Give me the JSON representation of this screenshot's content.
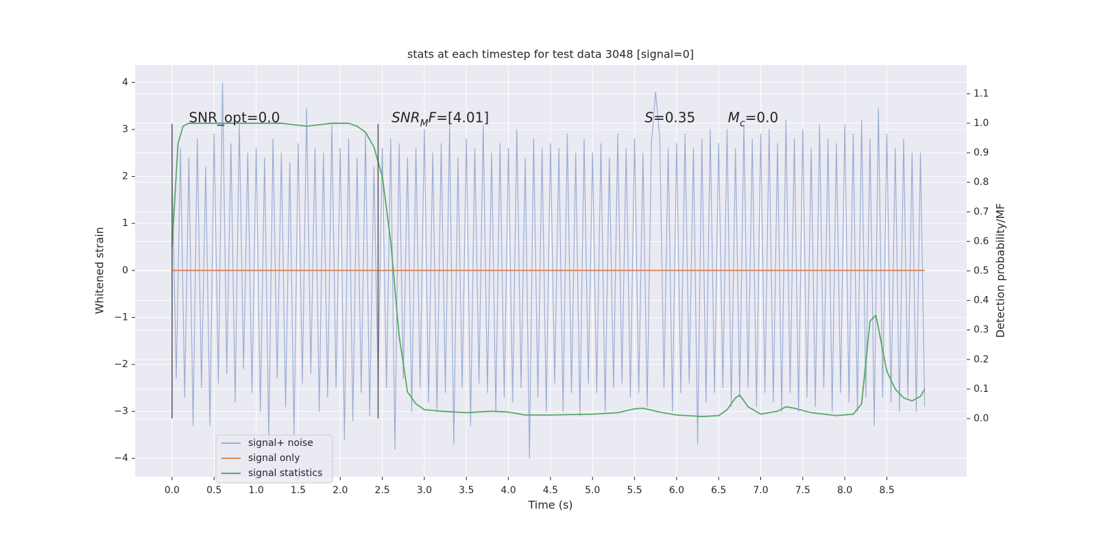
{
  "chart_data": {
    "type": "line",
    "title": "stats at each timestep for test data 3048 [signal=0]",
    "x_label": "Time (s)",
    "y_label": "Whitened strain",
    "y2_label": "Detection probability/MF",
    "xlim": [
      -0.44,
      9.45
    ],
    "ylim": [
      -4.39,
      4.37
    ],
    "y2lim": [
      -0.197,
      1.197
    ],
    "xticks": [
      {
        "value": 0,
        "label": "0.0"
      },
      0.5,
      {
        "value": 1,
        "label": "1.0"
      },
      1.5,
      {
        "value": 2,
        "label": "2.0"
      },
      2.5,
      {
        "value": 3,
        "label": "3.0"
      },
      3.5,
      {
        "value": 4,
        "label": "4.0"
      },
      4.5,
      {
        "value": 5,
        "label": "5.0"
      },
      5.5,
      {
        "value": 6,
        "label": "6.0"
      },
      6.5,
      {
        "value": 7,
        "label": "7.0"
      },
      7.5,
      {
        "value": 8,
        "label": "8.0"
      },
      8.5
    ],
    "yticks": [
      4,
      3,
      2,
      1,
      0,
      {
        "value": -1,
        "label": "−1"
      },
      {
        "value": -2,
        "label": "−2"
      },
      {
        "value": -3,
        "label": "−3"
      },
      {
        "value": -4,
        "label": "−4"
      }
    ],
    "y2ticks": [
      {
        "value": 0,
        "label": "0.0"
      },
      0.1,
      0.2,
      0.3,
      0.4,
      0.5,
      0.6,
      0.7,
      0.8,
      0.9,
      {
        "value": 1,
        "label": "1.0"
      },
      1.1
    ],
    "grid": true,
    "legend": "lower left",
    "series": [
      {
        "name": "signal+ noise",
        "color": "#9aadd4",
        "x": [
          0,
          0.05,
          0.1,
          0.15,
          0.2,
          0.25,
          0.3,
          0.35,
          0.4,
          0.45,
          0.5,
          0.55,
          0.6,
          0.65,
          0.7,
          0.75,
          0.8,
          0.85,
          0.9,
          0.95,
          1,
          1.05,
          1.1,
          1.15,
          1.2,
          1.25,
          1.3,
          1.35,
          1.4,
          1.45,
          1.5,
          1.55,
          1.6,
          1.65,
          1.7,
          1.75,
          1.8,
          1.85,
          1.9,
          1.95,
          2,
          2.05,
          2.1,
          2.15,
          2.2,
          2.25,
          2.3,
          2.35,
          2.4,
          2.45,
          2.5,
          2.55,
          2.6,
          2.65,
          2.7,
          2.75,
          2.8,
          2.85,
          2.9,
          2.95,
          3,
          3.05,
          3.1,
          3.15,
          3.2,
          3.25,
          3.3,
          3.35,
          3.4,
          3.45,
          3.5,
          3.55,
          3.6,
          3.65,
          3.7,
          3.75,
          3.8,
          3.85,
          3.9,
          3.95,
          4,
          4.05,
          4.1,
          4.15,
          4.2,
          4.25,
          4.3,
          4.35,
          4.4,
          4.45,
          4.5,
          4.55,
          4.6,
          4.65,
          4.7,
          4.75,
          4.8,
          4.85,
          4.9,
          4.95,
          5,
          5.05,
          5.1,
          5.15,
          5.2,
          5.25,
          5.3,
          5.35,
          5.4,
          5.45,
          5.5,
          5.55,
          5.6,
          5.65,
          5.7,
          5.75,
          5.8,
          5.85,
          5.9,
          5.95,
          6,
          6.05,
          6.1,
          6.15,
          6.2,
          6.25,
          6.3,
          6.35,
          6.4,
          6.45,
          6.5,
          6.55,
          6.6,
          6.65,
          6.7,
          6.75,
          6.8,
          6.85,
          6.9,
          6.95,
          7,
          7.05,
          7.1,
          7.15,
          7.2,
          7.25,
          7.3,
          7.35,
          7.4,
          7.45,
          7.5,
          7.55,
          7.6,
          7.65,
          7.7,
          7.75,
          7.8,
          7.85,
          7.9,
          7.95,
          8,
          8.05,
          8.1,
          8.15,
          8.2,
          8.25,
          8.3,
          8.35,
          8.4,
          8.45,
          8.5,
          8.55,
          8.6,
          8.65,
          8.7,
          8.75,
          8.8,
          8.85,
          8.9,
          8.95
        ],
        "values": [
          2.1,
          -2.3,
          2.6,
          -2.7,
          2.4,
          -3.3,
          2.8,
          -2.5,
          2.2,
          -3.3,
          2.9,
          -2.4,
          4.0,
          -2.2,
          2.7,
          -2.8,
          3.1,
          -2.1,
          2.5,
          -2.6,
          2.6,
          -3.0,
          2.4,
          -3.6,
          2.8,
          -2.3,
          2.5,
          -2.9,
          2.3,
          -3.5,
          2.7,
          -2.4,
          3.45,
          -2.2,
          2.6,
          -3.0,
          2.5,
          -2.7,
          3.1,
          -2.5,
          2.6,
          -3.6,
          2.8,
          -3.2,
          2.4,
          -2.6,
          2.9,
          -3.1,
          2.2,
          -2.4,
          2.6,
          -2.5,
          2.8,
          -3.8,
          2.7,
          -2.3,
          2.4,
          -3.0,
          2.6,
          -2.5,
          3.0,
          -2.8,
          2.5,
          -3.0,
          2.7,
          -2.6,
          3.1,
          -3.7,
          2.4,
          -2.5,
          2.8,
          -3.3,
          2.6,
          -2.4,
          3.1,
          -2.6,
          2.5,
          -3.0,
          2.7,
          -2.7,
          2.6,
          -2.8,
          3.0,
          -2.5,
          2.4,
          -4.0,
          2.8,
          -2.7,
          2.6,
          -3.0,
          2.7,
          -2.4,
          2.6,
          -3.0,
          2.9,
          -2.6,
          2.5,
          -3.1,
          2.8,
          -2.4,
          2.5,
          -2.6,
          2.7,
          -3.0,
          2.4,
          -2.5,
          2.9,
          -2.4,
          2.6,
          -2.7,
          2.8,
          -2.6,
          2.5,
          -2.9,
          2.7,
          3.8,
          2.8,
          -2.5,
          2.6,
          -3.0,
          2.7,
          -2.6,
          2.9,
          -2.4,
          2.6,
          -3.7,
          2.8,
          -2.8,
          3.0,
          -2.6,
          2.7,
          -2.5,
          3.0,
          -2.9,
          2.6,
          -2.7,
          3.1,
          -2.5,
          2.8,
          -2.9,
          2.9,
          -2.6,
          3.0,
          -2.8,
          2.7,
          -3.0,
          3.2,
          -2.6,
          2.8,
          -3.0,
          3.0,
          -2.7,
          2.6,
          -2.9,
          3.1,
          -2.5,
          2.8,
          -3.0,
          2.7,
          -2.6,
          3.1,
          -2.8,
          2.9,
          -3.0,
          3.2,
          -2.7,
          2.8,
          -3.3,
          3.45,
          -2.7,
          2.9,
          -2.8,
          2.6,
          -3.0,
          2.8,
          -2.7,
          2.5,
          -3.0,
          2.5,
          -2.9
        ]
      },
      {
        "name": "signal only",
        "color": "#dd8452",
        "x": [
          0,
          8.95
        ],
        "values": [
          0,
          0
        ]
      },
      {
        "name": "signal statistics",
        "color": "#55a868",
        "axis": "y2",
        "x": [
          0,
          0.07,
          0.13,
          0.2,
          0.5,
          1.0,
          1.3,
          1.6,
          1.9,
          2.1,
          2.2,
          2.3,
          2.4,
          2.5,
          2.6,
          2.7,
          2.8,
          2.9,
          3.0,
          3.2,
          3.5,
          3.8,
          4.0,
          4.2,
          4.5,
          5.0,
          5.3,
          5.5,
          5.6,
          5.8,
          6.0,
          6.3,
          6.5,
          6.6,
          6.7,
          6.75,
          6.85,
          7.0,
          7.2,
          7.3,
          7.4,
          7.6,
          7.9,
          8.1,
          8.2,
          8.3,
          8.37,
          8.5,
          8.6,
          8.7,
          8.8,
          8.9,
          8.95
        ],
        "values": [
          0.58,
          0.93,
          0.99,
          1.0,
          1.0,
          1.0,
          1.0,
          0.99,
          1.0,
          1.0,
          0.99,
          0.97,
          0.92,
          0.82,
          0.6,
          0.28,
          0.09,
          0.05,
          0.03,
          0.025,
          0.02,
          0.025,
          0.022,
          0.012,
          0.012,
          0.015,
          0.02,
          0.033,
          0.035,
          0.022,
          0.012,
          0.007,
          0.01,
          0.03,
          0.07,
          0.08,
          0.04,
          0.015,
          0.025,
          0.04,
          0.035,
          0.02,
          0.01,
          0.015,
          0.05,
          0.33,
          0.35,
          0.16,
          0.1,
          0.07,
          0.06,
          0.075,
          0.1
        ]
      }
    ],
    "vlines": [
      {
        "x": 0,
        "ymin": -3.15,
        "ymax": 3.12,
        "color": "#555555"
      },
      {
        "x": 2.45,
        "ymin": -3.15,
        "ymax": 3.12,
        "color": "#555555"
      }
    ],
    "annotations": [
      {
        "x": 0.2,
        "y": 3.24,
        "parts": [
          {
            "text": "SNR_opt=0.0"
          }
        ]
      },
      {
        "x": 2.61,
        "y": 3.24,
        "parts": [
          {
            "text": "SNR",
            "italic": true
          },
          {
            "text": "M",
            "italic": true,
            "sub": true
          },
          {
            "text": "F",
            "italic": true
          },
          {
            "text": "=[4.01]"
          }
        ]
      },
      {
        "x": 5.62,
        "y": 3.24,
        "parts": [
          {
            "text": "S",
            "italic": true
          },
          {
            "text": "=0.35"
          }
        ]
      },
      {
        "x": 6.61,
        "y": 3.24,
        "parts": [
          {
            "text": "M",
            "italic": true
          },
          {
            "text": "c",
            "italic": true,
            "sub": true
          },
          {
            "text": "=0.0"
          }
        ]
      }
    ]
  }
}
